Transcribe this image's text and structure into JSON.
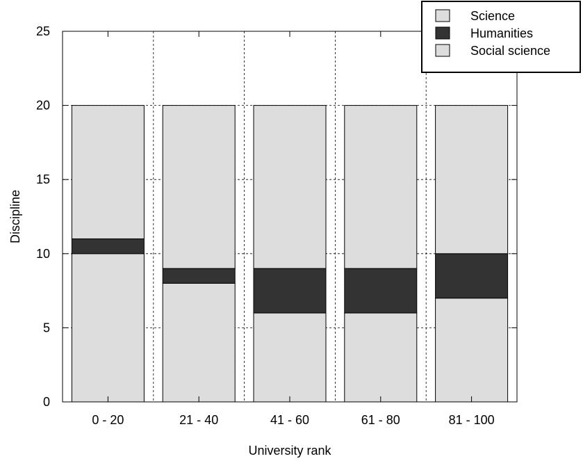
{
  "chart_data": {
    "type": "bar",
    "stacked": true,
    "title": "",
    "xlabel": "University rank",
    "ylabel": "Discipline",
    "categories": [
      "0 - 20",
      "21 - 40",
      "41 - 60",
      "61 - 80",
      "81 - 100"
    ],
    "ylim": [
      0,
      25
    ],
    "yticks": [
      0,
      5,
      10,
      15,
      20,
      25
    ],
    "grid": true,
    "legend_position": "top-right",
    "series": [
      {
        "name": "Science",
        "values": [
          10,
          8,
          6,
          6,
          7
        ],
        "color": "#dddddd"
      },
      {
        "name": "Humanities",
        "values": [
          1,
          1,
          3,
          3,
          3
        ],
        "color": "#333333"
      },
      {
        "name": "Social science",
        "values": [
          9,
          11,
          11,
          11,
          10
        ],
        "color": "#dddddd"
      }
    ]
  }
}
